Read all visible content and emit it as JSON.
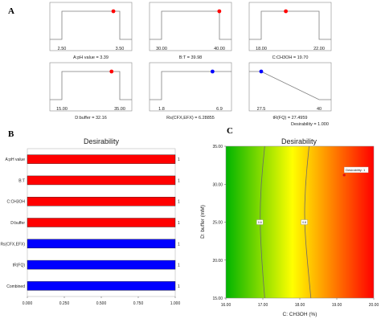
{
  "panels": {
    "a": "A",
    "b": "B",
    "c": "C"
  },
  "colors": {
    "red": "#ff0000",
    "blue": "#0000ff",
    "box": "#7f7f7f",
    "curve": "#6a6a6a"
  },
  "chart_data": [
    {
      "type": "factor_settings",
      "panels": [
        {
          "name": "A:pH value",
          "caption": "A:pH value = 3.39",
          "min_label": "2.50",
          "max_label": "3.50",
          "min": 2.5,
          "max": 3.5,
          "value": 3.39,
          "marker": "red",
          "shape": "box"
        },
        {
          "name": "B:T",
          "caption": "B:T = 39.98",
          "min_label": "30.00",
          "max_label": "40.00",
          "min": 30,
          "max": 40,
          "value": 39.98,
          "marker": "red",
          "shape": "box"
        },
        {
          "name": "C:CH3OH",
          "caption": "C:CH3OH = 19.70",
          "min_label": "18.00",
          "max_label": "22.00",
          "min": 18,
          "max": 22,
          "value": 19.7,
          "marker": "red",
          "shape": "box"
        },
        {
          "name": "D:buffer",
          "caption": "D:buffer = 32.16",
          "min_label": "15.00",
          "max_label": "35.00",
          "min": 15,
          "max": 35,
          "value": 32.16,
          "marker": "red",
          "shape": "box"
        },
        {
          "name": "Rs(CFX,EFX)",
          "caption": "Rs(CFX,EFX) = 6.28855",
          "min_label": "1.8",
          "max_label": "6.9",
          "min": 1.8,
          "max": 6.9,
          "value": 6.28855,
          "marker": "blue",
          "shape": "step"
        },
        {
          "name": "tR(FQ)",
          "caption": "tR(FQ) = 27.4959",
          "min_label": "27.5",
          "max_label": "40",
          "min": 27.5,
          "max": 40,
          "value": 27.4959,
          "marker": "blue",
          "shape": "ramp"
        }
      ],
      "footer": "Desirability = 1.000"
    },
    {
      "type": "bar",
      "orientation": "horizontal",
      "title": "Desirability",
      "categories": [
        "A:pH value",
        "B:T",
        "C:CH3OH",
        "D:buffer",
        "Rs(CFX,EFX)",
        "tR(FQ)",
        "Combined"
      ],
      "values": [
        1,
        1,
        1,
        1,
        1,
        1,
        1
      ],
      "value_labels": [
        "1",
        "1",
        "1",
        "1",
        "1",
        "1",
        "1"
      ],
      "bar_colors": [
        "red",
        "red",
        "red",
        "red",
        "blue",
        "blue",
        "blue"
      ],
      "xlim": [
        0,
        1
      ],
      "xticks": [
        "0.000",
        "0.250",
        "0.500",
        "0.750",
        "1.000"
      ]
    },
    {
      "type": "heatmap",
      "title": "Desirability",
      "xlabel": "C: CH3OH (%)",
      "ylabel": "D: buffer (mM)",
      "xlim": [
        16,
        20
      ],
      "ylim": [
        15,
        35
      ],
      "xticks": [
        "16.00",
        "17.00",
        "18.00",
        "19.00",
        "20.00"
      ],
      "yticks": [
        "15.00",
        "20.00",
        "25.00",
        "30.00",
        "35.00"
      ],
      "colorscale": [
        "#00b400",
        "#ffff00",
        "#ff0000"
      ],
      "contours": [
        {
          "label": "0.6",
          "points": [
            [
              17.05,
              15
            ],
            [
              16.97,
              20
            ],
            [
              16.92,
              25
            ],
            [
              16.95,
              30
            ],
            [
              17.05,
              35
            ]
          ]
        },
        {
          "label": "0.8",
          "points": [
            [
              18.3,
              15
            ],
            [
              18.2,
              20
            ],
            [
              18.12,
              25
            ],
            [
              18.15,
              30
            ],
            [
              18.25,
              35
            ]
          ]
        }
      ],
      "point": {
        "label": "Desirability: 1",
        "x": 19.2,
        "y": 31.2
      }
    }
  ]
}
